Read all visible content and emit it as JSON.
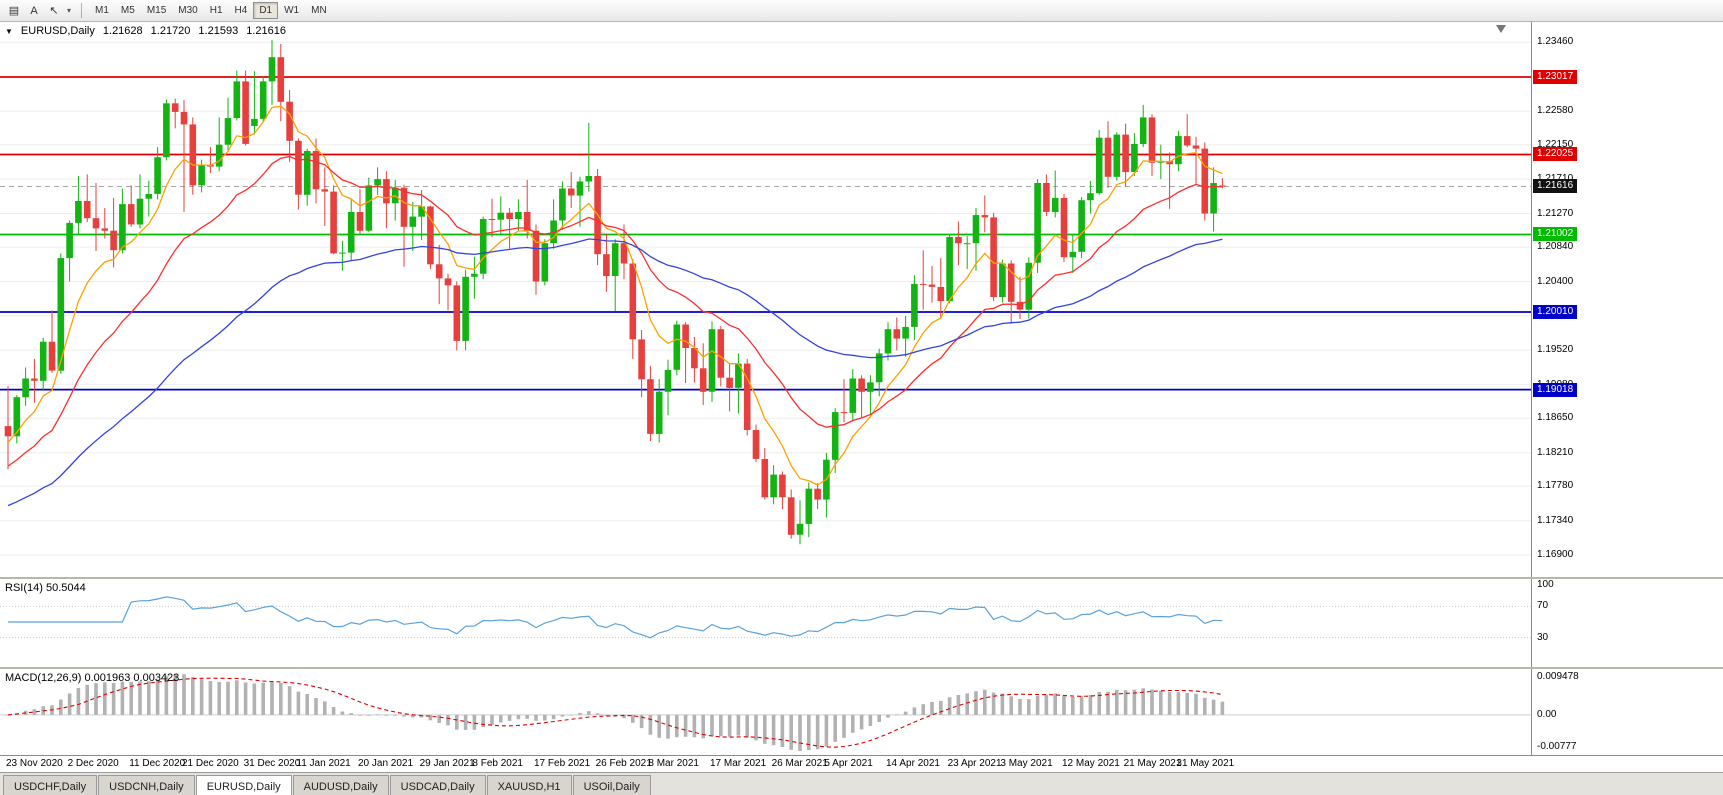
{
  "toolbar": {
    "icons": [
      {
        "name": "chart-window-icon",
        "glyph": "▤"
      },
      {
        "name": "text-label-tool-icon",
        "glyph": "A"
      },
      {
        "name": "pointer-tool-icon",
        "glyph": "↖"
      },
      {
        "name": "chevron-down-icon",
        "glyph": "▾",
        "small": true
      }
    ],
    "timeframes": [
      "M1",
      "M5",
      "M15",
      "M30",
      "H1",
      "H4",
      "D1",
      "W1",
      "MN"
    ],
    "active_timeframe": "D1"
  },
  "chart": {
    "title": {
      "marker": "▼",
      "symbol": "EURUSD,Daily",
      "open": "1.21628",
      "high": "1.21720",
      "low": "1.21593",
      "close": "1.21616"
    },
    "y_axis_labels": [
      "1.23460",
      "1.23010",
      "1.22580",
      "1.22150",
      "1.21710",
      "1.21270",
      "1.20840",
      "1.20400",
      "1.19960",
      "1.19520",
      "1.19080",
      "1.18650",
      "1.18210",
      "1.17780",
      "1.17340",
      "1.16900"
    ],
    "price_range": {
      "top": 1.2372,
      "bottom": 1.1662
    },
    "hlines": [
      {
        "price": 1.23017,
        "label": "1.23017",
        "color": "#e00000"
      },
      {
        "price": 1.22025,
        "label": "1.22025",
        "color": "#e00000"
      },
      {
        "price": 1.21002,
        "label": "1.21002",
        "color": "#00bb00"
      },
      {
        "price": 1.2001,
        "label": "1.20010",
        "color": "#0000cc"
      },
      {
        "price": 1.19018,
        "label": "1.19018",
        "color": "#0000cc"
      }
    ],
    "current_price": {
      "value": 1.21616,
      "label": "1.21616",
      "badge_bg": "#111111"
    },
    "candle_colors": {
      "bull": "#12b312",
      "bear": "#e5403d"
    },
    "ma_lines": [
      {
        "period": 8,
        "seed": 1.1832,
        "color": "#ffa000"
      },
      {
        "period": 21,
        "seed": 1.18,
        "color": "#ff2d2d"
      },
      {
        "period": 55,
        "seed": 1.175,
        "color": "#3344dd"
      }
    ]
  },
  "rsi": {
    "label": "RSI(14) 50.5044",
    "period": 14,
    "levels": [
      70,
      30
    ],
    "axis_labels": [
      "100",
      "70",
      "30"
    ],
    "color": "#5aa2dc"
  },
  "macd": {
    "label": "MACD(12,26,9) 0.001963 0.003423",
    "fast": 12,
    "slow": 26,
    "signal_period": 9,
    "axis_labels": {
      "top": "0.009478",
      "zero": "0.00",
      "bottom": "-0.00777"
    },
    "range": {
      "max": 0.009478,
      "min": -0.00777
    },
    "hist_color": "#b2b2b2",
    "signal_color": "#dd0000"
  },
  "x_axis": [
    {
      "label": "23 Nov 2020",
      "i": 0
    },
    {
      "label": "2 Dec 2020",
      "i": 7
    },
    {
      "label": "11 Dec 2020",
      "i": 14
    },
    {
      "label": "21 Dec 2020",
      "i": 20
    },
    {
      "label": "31 Dec 2020",
      "i": 27
    },
    {
      "label": "11 Jan 2021",
      "i": 33
    },
    {
      "label": "20 Jan 2021",
      "i": 40
    },
    {
      "label": "29 Jan 2021",
      "i": 47
    },
    {
      "label": "8 Feb 2021",
      "i": 53
    },
    {
      "label": "17 Feb 2021",
      "i": 60
    },
    {
      "label": "26 Feb 2021",
      "i": 67
    },
    {
      "label": "8 Mar 2021",
      "i": 73
    },
    {
      "label": "17 Mar 2021",
      "i": 80
    },
    {
      "label": "26 Mar 2021",
      "i": 87
    },
    {
      "label": "5 Apr 2021",
      "i": 93
    },
    {
      "label": "14 Apr 2021",
      "i": 100
    },
    {
      "label": "23 Apr 2021",
      "i": 107
    },
    {
      "label": "3 May 2021",
      "i": 113
    },
    {
      "label": "12 May 2021",
      "i": 120
    },
    {
      "label": "21 May 2021",
      "i": 127
    },
    {
      "label": "31 May 2021",
      "i": 133
    }
  ],
  "tabs": {
    "items": [
      "USDCHF,Daily",
      "USDCNH,Daily",
      "EURUSD,Daily",
      "AUDUSD,Daily",
      "USDCAD,Daily",
      "XAUUSD,H1",
      "USOil,Daily"
    ],
    "active": "EURUSD,Daily"
  },
  "chart_data": {
    "type": "candlestick",
    "symbol": "EURUSD",
    "timeframe": "Daily",
    "start_label": "23 Nov 2020",
    "end_label": "31 May 2021",
    "candles": [
      [
        1.1855,
        1.1906,
        1.18,
        1.1842
      ],
      [
        1.1842,
        1.1895,
        1.1833,
        1.1892
      ],
      [
        1.1892,
        1.193,
        1.1881,
        1.1916
      ],
      [
        1.1916,
        1.1941,
        1.1885,
        1.1913
      ],
      [
        1.1913,
        1.1968,
        1.19,
        1.1963
      ],
      [
        1.1963,
        1.2003,
        1.1923,
        1.1926
      ],
      [
        1.1926,
        1.2076,
        1.1922,
        1.207
      ],
      [
        1.207,
        1.2118,
        1.204,
        1.2115
      ],
      [
        1.2115,
        1.2175,
        1.2099,
        1.2143
      ],
      [
        1.2143,
        1.2177,
        1.2116,
        1.2121
      ],
      [
        1.2121,
        1.2166,
        1.2079,
        1.2108
      ],
      [
        1.2108,
        1.2134,
        1.2095,
        1.2105
      ],
      [
        1.2105,
        1.2147,
        1.2058,
        1.208
      ],
      [
        1.208,
        1.2159,
        1.2076,
        1.2139
      ],
      [
        1.2139,
        1.2163,
        1.211,
        1.2113
      ],
      [
        1.2113,
        1.2177,
        1.2108,
        1.2146
      ],
      [
        1.2146,
        1.2169,
        1.2123,
        1.2152
      ],
      [
        1.2152,
        1.2212,
        1.2145,
        1.2199
      ],
      [
        1.2199,
        1.2273,
        1.2195,
        1.2268
      ],
      [
        1.2268,
        1.2274,
        1.2236,
        1.2257
      ],
      [
        1.2257,
        1.2272,
        1.2129,
        1.2241
      ],
      [
        1.2241,
        1.225,
        1.2151,
        1.2163
      ],
      [
        1.2163,
        1.2196,
        1.2154,
        1.2189
      ],
      [
        1.2189,
        1.2212,
        1.2179,
        1.2187
      ],
      [
        1.2187,
        1.225,
        1.2181,
        1.2215
      ],
      [
        1.2215,
        1.2275,
        1.2208,
        1.2249
      ],
      [
        1.2249,
        1.231,
        1.2246,
        1.2296
      ],
      [
        1.2296,
        1.231,
        1.2214,
        1.2216
      ],
      [
        1.2239,
        1.2309,
        1.2228,
        1.2248
      ],
      [
        1.2248,
        1.2303,
        1.2245,
        1.2296
      ],
      [
        1.2296,
        1.2349,
        1.2266,
        1.2327
      ],
      [
        1.2327,
        1.2344,
        1.2245,
        1.227
      ],
      [
        1.227,
        1.2285,
        1.2193,
        1.222
      ],
      [
        1.222,
        1.2223,
        1.2132,
        1.2151
      ],
      [
        1.2151,
        1.221,
        1.2137,
        1.2207
      ],
      [
        1.2207,
        1.2223,
        1.214,
        1.2158
      ],
      [
        1.2158,
        1.2186,
        1.2111,
        1.2155
      ],
      [
        1.2155,
        1.2163,
        1.2075,
        1.2076
      ],
      [
        1.2076,
        1.2092,
        1.2054,
        1.2077
      ],
      [
        1.2077,
        1.2145,
        1.2066,
        1.2129
      ],
      [
        1.2129,
        1.2158,
        1.2101,
        1.2105
      ],
      [
        1.2105,
        1.2173,
        1.2103,
        1.2163
      ],
      [
        1.2163,
        1.2186,
        1.2151,
        1.2171
      ],
      [
        1.2171,
        1.2181,
        1.2108,
        1.214
      ],
      [
        1.214,
        1.217,
        1.2118,
        1.216
      ],
      [
        1.216,
        1.2164,
        1.2059,
        1.211
      ],
      [
        1.211,
        1.2142,
        1.2079,
        1.2123
      ],
      [
        1.2123,
        1.2157,
        1.2093,
        1.2136
      ],
      [
        1.2136,
        1.2137,
        1.2056,
        1.2062
      ],
      [
        1.2062,
        1.2087,
        1.2011,
        1.2044
      ],
      [
        1.2044,
        1.205,
        1.2003,
        1.2035
      ],
      [
        1.2035,
        1.204,
        1.1952,
        1.1964
      ],
      [
        1.1964,
        1.2055,
        1.1952,
        1.2046
      ],
      [
        1.2046,
        1.2072,
        1.2018,
        1.205
      ],
      [
        1.205,
        1.2123,
        1.2043,
        1.212
      ],
      [
        1.212,
        1.2146,
        1.2097,
        1.2119
      ],
      [
        1.2119,
        1.2149,
        1.2099,
        1.2128
      ],
      [
        1.2128,
        1.2134,
        1.2082,
        1.212
      ],
      [
        1.212,
        1.2145,
        1.2105,
        1.2129
      ],
      [
        1.2129,
        1.217,
        1.2095,
        1.2105
      ],
      [
        1.2105,
        1.2113,
        1.2023,
        1.204
      ],
      [
        1.204,
        1.2094,
        1.2035,
        1.2089
      ],
      [
        1.2089,
        1.2145,
        1.2082,
        1.2118
      ],
      [
        1.2118,
        1.2168,
        1.2106,
        1.2159
      ],
      [
        1.2159,
        1.218,
        1.2134,
        1.215
      ],
      [
        1.215,
        1.2174,
        1.211,
        1.2168
      ],
      [
        1.2168,
        1.2243,
        1.2155,
        1.2175
      ],
      [
        1.2175,
        1.2184,
        1.2061,
        1.2075
      ],
      [
        1.2075,
        1.2101,
        1.2027,
        1.2047
      ],
      [
        1.2047,
        1.2094,
        1.2002,
        1.2089
      ],
      [
        1.2089,
        1.2113,
        1.2043,
        1.2063
      ],
      [
        1.2063,
        1.2069,
        1.1941,
        1.1966
      ],
      [
        1.1966,
        1.1978,
        1.1892,
        1.1915
      ],
      [
        1.1915,
        1.1932,
        1.1836,
        1.1845
      ],
      [
        1.1845,
        1.1915,
        1.1834,
        1.1899
      ],
      [
        1.1899,
        1.194,
        1.1869,
        1.1927
      ],
      [
        1.1927,
        1.199,
        1.192,
        1.1985
      ],
      [
        1.1985,
        1.1988,
        1.191,
        1.1955
      ],
      [
        1.1955,
        1.1969,
        1.1911,
        1.1929
      ],
      [
        1.1929,
        1.1961,
        1.1882,
        1.1899
      ],
      [
        1.1899,
        1.1989,
        1.1886,
        1.1979
      ],
      [
        1.1979,
        1.1983,
        1.1906,
        1.1917
      ],
      [
        1.1917,
        1.1935,
        1.1874,
        1.1904
      ],
      [
        1.1904,
        1.1948,
        1.1871,
        1.1935
      ],
      [
        1.1935,
        1.1941,
        1.1843,
        1.185
      ],
      [
        1.185,
        1.1857,
        1.1809,
        1.1813
      ],
      [
        1.1813,
        1.1827,
        1.1761,
        1.1764
      ],
      [
        1.1764,
        1.1805,
        1.1755,
        1.1793
      ],
      [
        1.1793,
        1.1797,
        1.1749,
        1.1764
      ],
      [
        1.1764,
        1.1774,
        1.1711,
        1.1716
      ],
      [
        1.1716,
        1.176,
        1.1704,
        1.173
      ],
      [
        1.173,
        1.1783,
        1.1713,
        1.1775
      ],
      [
        1.1775,
        1.1782,
        1.1749,
        1.1761
      ],
      [
        1.1761,
        1.1821,
        1.1738,
        1.1812
      ],
      [
        1.1812,
        1.1878,
        1.1795,
        1.1873
      ],
      [
        1.1873,
        1.1915,
        1.186,
        1.1872
      ],
      [
        1.1872,
        1.1928,
        1.1861,
        1.1916
      ],
      [
        1.1916,
        1.192,
        1.1865,
        1.1899
      ],
      [
        1.1899,
        1.192,
        1.1869,
        1.1911
      ],
      [
        1.1911,
        1.1954,
        1.1893,
        1.1948
      ],
      [
        1.1948,
        1.1988,
        1.1939,
        1.1979
      ],
      [
        1.1979,
        1.1994,
        1.1952,
        1.1967
      ],
      [
        1.1967,
        1.1996,
        1.1944,
        1.1982
      ],
      [
        1.1982,
        1.2048,
        1.1965,
        1.2037
      ],
      [
        1.2037,
        1.208,
        1.2004,
        1.2036
      ],
      [
        1.2036,
        1.206,
        1.2013,
        1.2033
      ],
      [
        1.2033,
        1.207,
        1.1994,
        1.2015
      ],
      [
        1.2015,
        1.21,
        1.2012,
        1.2097
      ],
      [
        1.2097,
        1.2117,
        1.2061,
        1.2089
      ],
      [
        1.2089,
        1.2098,
        1.2056,
        1.2089
      ],
      [
        1.2089,
        1.2134,
        1.2054,
        1.2125
      ],
      [
        1.2125,
        1.215,
        1.2103,
        1.2122
      ],
      [
        1.2122,
        1.2128,
        1.2015,
        1.202
      ],
      [
        1.202,
        1.2068,
        1.2013,
        1.2063
      ],
      [
        1.2063,
        1.2067,
        1.1986,
        1.2014
      ],
      [
        1.2014,
        1.2046,
        1.1992,
        1.2004
      ],
      [
        1.2004,
        1.2071,
        1.1993,
        1.2064
      ],
      [
        1.2064,
        1.2171,
        1.2051,
        1.2166
      ],
      [
        1.2166,
        1.2177,
        1.2124,
        1.2129
      ],
      [
        1.2129,
        1.2182,
        1.2122,
        1.2147
      ],
      [
        1.2147,
        1.2152,
        1.2065,
        1.2071
      ],
      [
        1.2071,
        1.21,
        1.2051,
        1.2078
      ],
      [
        1.2078,
        1.2148,
        1.207,
        1.2144
      ],
      [
        1.2144,
        1.2169,
        1.2127,
        1.2153
      ],
      [
        1.2153,
        1.2234,
        1.2151,
        1.2224
      ],
      [
        1.2224,
        1.2245,
        1.216,
        1.2174
      ],
      [
        1.2174,
        1.2231,
        1.2169,
        1.2228
      ],
      [
        1.2228,
        1.2242,
        1.2161,
        1.218
      ],
      [
        1.218,
        1.223,
        1.2175,
        1.2216
      ],
      [
        1.2216,
        1.2266,
        1.2212,
        1.225
      ],
      [
        1.225,
        1.2254,
        1.2175,
        1.2192
      ],
      [
        1.2192,
        1.2215,
        1.2171,
        1.2194
      ],
      [
        1.2194,
        1.2205,
        1.2133,
        1.219
      ],
      [
        1.219,
        1.2233,
        1.2181,
        1.2226
      ],
      [
        1.2226,
        1.2254,
        1.2212,
        1.2214
      ],
      [
        1.2214,
        1.2225,
        1.2163,
        1.221
      ],
      [
        1.221,
        1.2218,
        1.2118,
        1.2127
      ],
      [
        1.2127,
        1.2186,
        1.2104,
        1.2166
      ],
      [
        1.21628,
        1.2172,
        1.21593,
        1.21616
      ]
    ]
  }
}
